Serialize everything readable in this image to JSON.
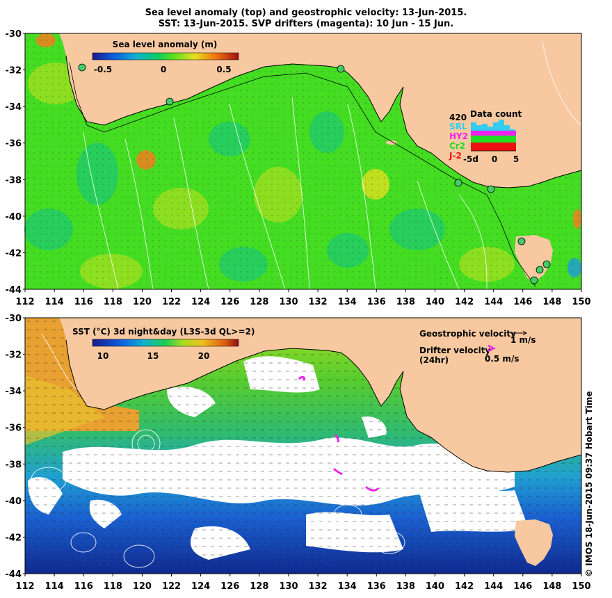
{
  "title_line1": "Sea level anomaly (top) and geostrophic velocity: 13-Jun-2015.",
  "title_line2": "SST: 13-Jun-2015. SVP drifters (magenta): 10 Jun - 15 Jun.",
  "top_panel": {
    "colorbar_title": "Sea level anomaly (m)",
    "colorbar_ticks": [
      "-0.5",
      "0",
      "0.5"
    ],
    "inset": {
      "title": "Data count",
      "top_value": "420",
      "missions": [
        {
          "label": "SRL",
          "color": "#33ccee"
        },
        {
          "label": "HY2",
          "color": "#ee22ee"
        },
        {
          "label": "Cr2",
          "color": "#22dd22"
        },
        {
          "label": "J-2",
          "color": "#ee1111"
        }
      ],
      "xticks": [
        "-5d",
        "0",
        "5"
      ]
    }
  },
  "bottom_panel": {
    "colorbar_title": "SST (°C) 3d night&day (L3S-3d QL>=2)",
    "colorbar_ticks": [
      "10",
      "15",
      "20"
    ],
    "geo_velocity_label": "Geostrophic velocity",
    "geo_velocity_scale": "1 m/s",
    "drifter_velocity_label": "Drifter velocity",
    "drifter_velocity_period": "(24hr)",
    "drifter_velocity_scale": "0.5 m/s"
  },
  "axes": {
    "lat_ticks": [
      "-30",
      "-32",
      "-34",
      "-36",
      "-38",
      "-40",
      "-42",
      "-44"
    ],
    "lon_ticks": [
      "112",
      "114",
      "116",
      "118",
      "120",
      "122",
      "124",
      "126",
      "128",
      "130",
      "132",
      "134",
      "136",
      "138",
      "140",
      "142",
      "144",
      "146",
      "148",
      "150"
    ]
  },
  "credit": "© IMOS 18-Jun-2015 09:37 Hobart Time",
  "colors": {
    "land": "#f8c9a0",
    "ocean_sla": "#44dd22",
    "sst_warm": "#e89a30",
    "sst_cold": "#1a3fc0",
    "cloud": "#ffffff",
    "drifter": "#ee22ee"
  }
}
